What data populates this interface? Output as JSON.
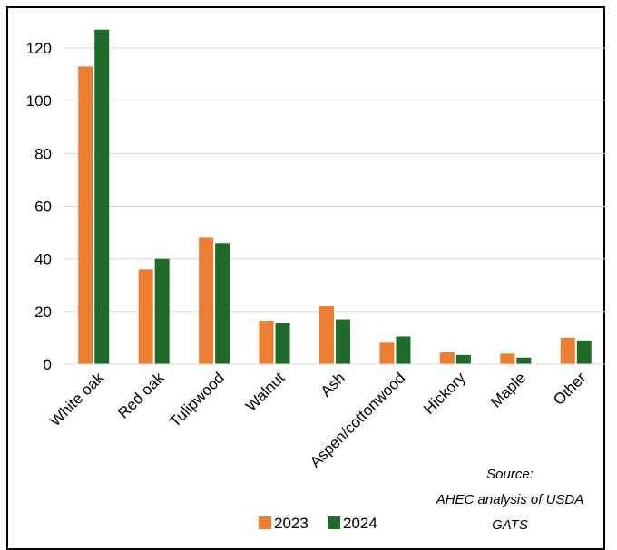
{
  "chart_data": {
    "type": "bar",
    "categories": [
      "White oak",
      "Red oak",
      "Tulipwood",
      "Walnut",
      "Ash",
      "Aspen/cottonwood",
      "Hickory",
      "Maple",
      "Other"
    ],
    "series": [
      {
        "name": "2023",
        "color": "#ED7D31",
        "values": [
          113,
          36,
          48,
          16.5,
          22,
          8.5,
          4.5,
          4,
          10
        ]
      },
      {
        "name": "2024",
        "color": "#1E6B2A",
        "values": [
          127,
          40,
          46,
          15.5,
          17,
          10.5,
          3.5,
          2.5,
          9
        ]
      }
    ],
    "ylim": [
      0,
      130
    ],
    "yticks": [
      0,
      20,
      40,
      60,
      80,
      100,
      120
    ],
    "grid": true,
    "legend": "bottom",
    "annotation": {
      "line1": "Source:",
      "line2": "AHEC analysis of USDA",
      "line3": "GATS"
    }
  }
}
